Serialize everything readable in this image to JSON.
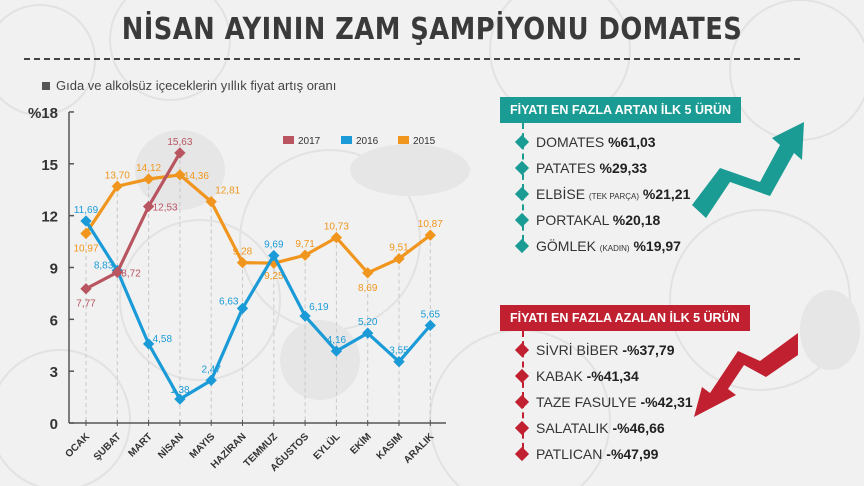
{
  "title": "NİSAN AYININ ZAM ŞAMPİYONU DOMATES",
  "subtitle": "Gıda ve alkolsüz içeceklerin yıllık fiyat artış oranı",
  "chart_data": {
    "type": "line",
    "title": "Gıda ve alkolsüz içeceklerin yıllık fiyat artış oranı",
    "xlabel": "",
    "ylabel": "%",
    "ylim": [
      0,
      18
    ],
    "yticks": [
      "0",
      "3",
      "6",
      "9",
      "12",
      "15",
      "%18"
    ],
    "categories": [
      "OCAK",
      "ŞUBAT",
      "MART",
      "NİSAN",
      "MAYIS",
      "HAZİRAN",
      "TEMMUZ",
      "AĞUSTOS",
      "EYLÜL",
      "EKİM",
      "KASIM",
      "ARALIK"
    ],
    "legend_position": "top",
    "grid": "vertical dashed",
    "series": [
      {
        "name": "2017",
        "color": "#b85560",
        "values": [
          7.77,
          8.72,
          12.53,
          15.63,
          null,
          null,
          null,
          null,
          null,
          null,
          null,
          null
        ],
        "labels": [
          "7,77",
          "8,72",
          "12,53",
          "15,63"
        ]
      },
      {
        "name": "2016",
        "color": "#1a9bd7",
        "values": [
          11.69,
          8.83,
          4.58,
          1.38,
          2.47,
          6.63,
          9.69,
          6.19,
          4.16,
          5.2,
          3.55,
          5.65
        ],
        "labels": [
          "11,69",
          "8,83",
          "4,58",
          "1,38",
          "2,47",
          "6,63",
          "9,69",
          "6,19",
          "4,16",
          "5,20",
          "3,55",
          "5,65"
        ]
      },
      {
        "name": "2015",
        "color": "#f0961e",
        "values": [
          10.97,
          13.7,
          14.12,
          14.36,
          12.81,
          9.28,
          9.25,
          9.71,
          10.73,
          8.69,
          9.51,
          10.87
        ],
        "labels": [
          "10,97",
          "13,70",
          "14,12",
          "14,36",
          "12,81",
          "9,28",
          "9,25",
          "9,71",
          "10,73",
          "8,69",
          "9,51",
          "10,87"
        ]
      }
    ]
  },
  "increase_panel": {
    "header": "FİYATI EN FAZLA ARTAN İLK 5 ÜRÜN",
    "color": "#1a9b93",
    "items": [
      {
        "name": "DOMATES",
        "note": "",
        "value": "%61,03"
      },
      {
        "name": "PATATES",
        "note": "",
        "value": "%29,33"
      },
      {
        "name": "ELBİSE",
        "note": "(TEK PARÇA)",
        "value": "%21,21"
      },
      {
        "name": "PORTAKAL",
        "note": "",
        "value": "%20,18"
      },
      {
        "name": "GÖMLEK",
        "note": "(KADIN)",
        "value": "%19,97"
      }
    ],
    "icon": "arrow-up-zigzag-icon"
  },
  "decrease_panel": {
    "header": "FİYATI EN FAZLA AZALAN İLK 5 ÜRÜN",
    "color": "#c0202f",
    "items": [
      {
        "name": "SİVRİ BİBER",
        "note": "",
        "value": "-%37,79"
      },
      {
        "name": "KABAK",
        "note": "",
        "value": "-%41,34"
      },
      {
        "name": "TAZE FASULYE",
        "note": "",
        "value": "-%42,31"
      },
      {
        "name": "SALATALIK",
        "note": "",
        "value": "-%46,66"
      },
      {
        "name": "PATLICAN",
        "note": "",
        "value": "-%47,99"
      }
    ],
    "icon": "arrow-down-zigzag-icon"
  }
}
